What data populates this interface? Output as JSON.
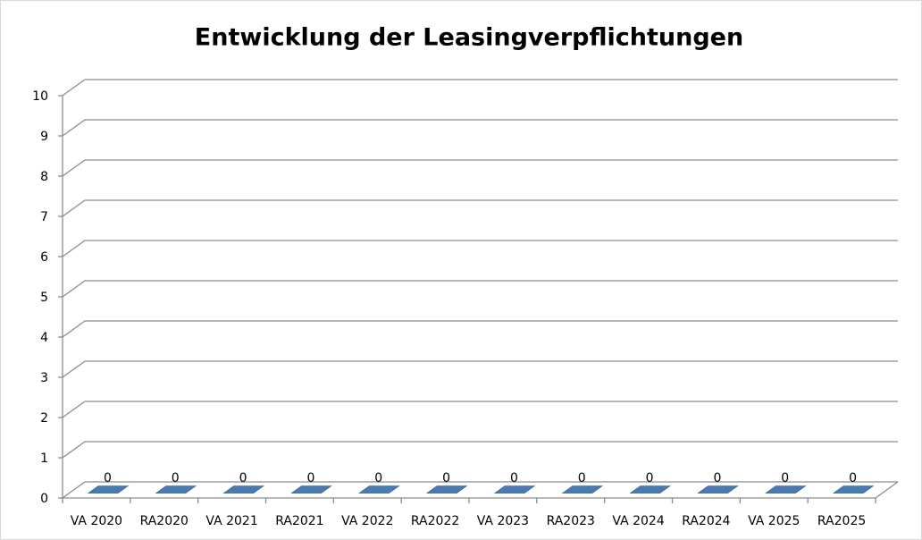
{
  "chart_data": {
    "type": "bar3d",
    "title": "Entwicklung der Leasingverpflichtungen",
    "categories": [
      "VA 2020",
      "RA2020",
      "VA 2021",
      "RA2021",
      "VA 2022",
      "RA2022",
      "VA 2023",
      "RA2023",
      "VA 2024",
      "RA2024",
      "VA 2025",
      "RA2025"
    ],
    "values": [
      0,
      0,
      0,
      0,
      0,
      0,
      0,
      0,
      0,
      0,
      0,
      0
    ],
    "color": "#4a7ab0",
    "ylim": [
      0,
      10
    ],
    "yticks": [
      0,
      1,
      2,
      3,
      4,
      5,
      6,
      7,
      8,
      9,
      10
    ],
    "grid": true
  }
}
